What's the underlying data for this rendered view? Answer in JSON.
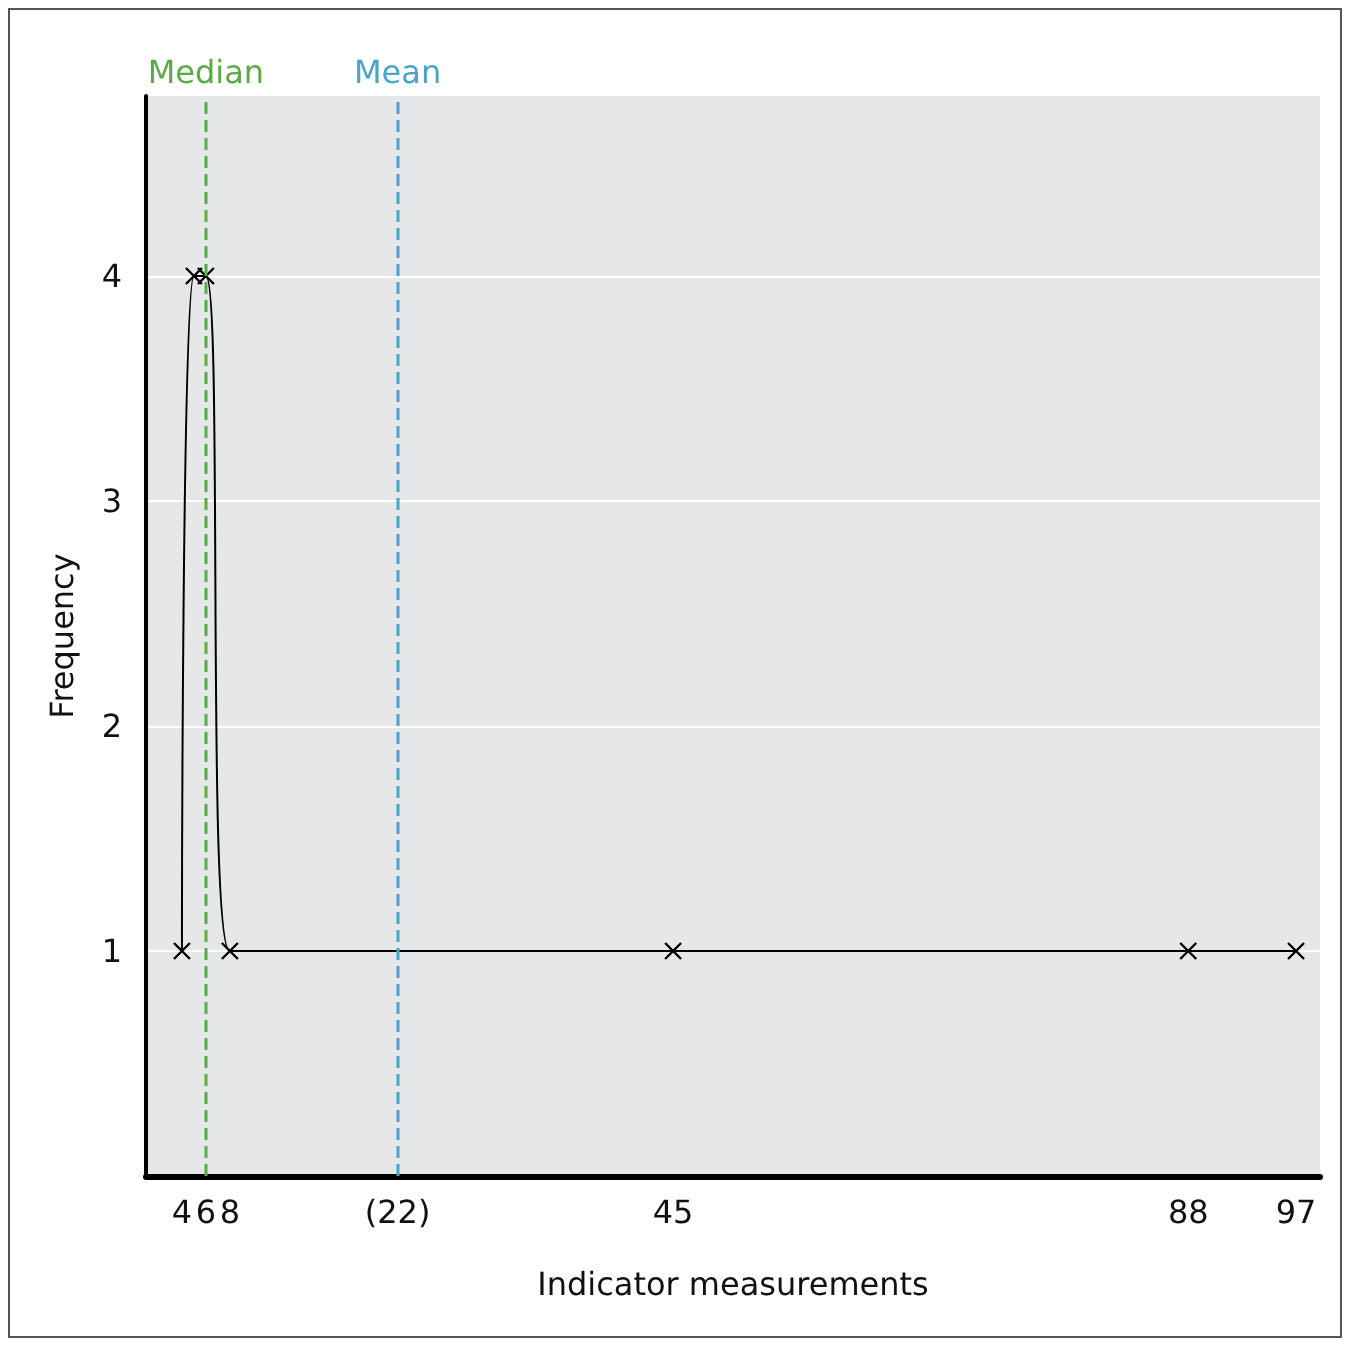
{
  "chart_data": {
    "type": "line",
    "xlabel": "Indicator measurements",
    "ylabel": "Frequency",
    "x": [
      4,
      5,
      6,
      8,
      45,
      88,
      97
    ],
    "series": [
      {
        "color": "#000000",
        "values": [
          1,
          4,
          4,
          1,
          1,
          1,
          1
        ]
      }
    ],
    "xlim": [
      1,
      99
    ],
    "xticks": [
      4,
      6,
      8,
      {
        "value": 22,
        "label": "(22)"
      },
      45,
      88,
      97
    ],
    "ylim": [
      0,
      4.8
    ],
    "yticks": [
      1,
      2,
      3,
      4
    ],
    "ref_lines": [
      {
        "axis": "x",
        "value": 6,
        "label": "Median",
        "color": "#5aab46",
        "line_style": "dashed"
      },
      {
        "axis": "x",
        "value": 22,
        "label": "Mean",
        "color": "#4aa3c8",
        "line_style": "dashed"
      }
    ],
    "grid": "y",
    "marker": "cross",
    "line_style": "solid"
  }
}
